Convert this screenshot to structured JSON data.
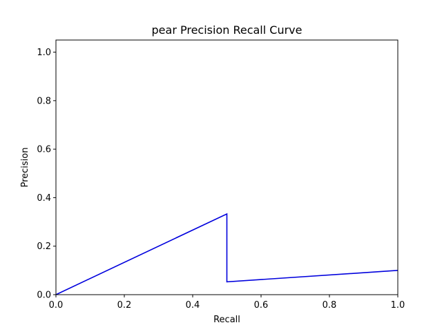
{
  "chart_data": {
    "type": "line",
    "title": "pear Precision Recall Curve",
    "xlabel": "Recall",
    "ylabel": "Precision",
    "xlim": [
      0.0,
      1.0
    ],
    "ylim": [
      0.0,
      1.05
    ],
    "xticks": [
      0.0,
      0.2,
      0.4,
      0.6,
      0.8,
      1.0
    ],
    "xtick_labels": [
      "0.0",
      "0.2",
      "0.4",
      "0.6",
      "0.8",
      "1.0"
    ],
    "yticks": [
      0.0,
      0.2,
      0.4,
      0.6,
      0.8,
      1.0
    ],
    "ytick_labels": [
      "0.0",
      "0.2",
      "0.4",
      "0.6",
      "0.8",
      "1.0"
    ],
    "grid": false,
    "legend": false,
    "series": [
      {
        "color": "#0000dd",
        "x": [
          0.0,
          0.5,
          0.5,
          1.0
        ],
        "y": [
          0.0,
          0.333,
          0.053,
          0.1
        ]
      }
    ]
  }
}
